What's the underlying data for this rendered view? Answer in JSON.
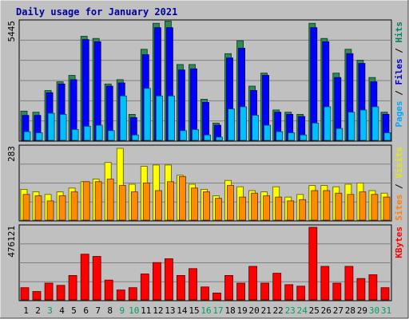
{
  "chart_data": {
    "type": "bar",
    "title": "Daily usage for January 2021",
    "categories": [
      "1",
      "2",
      "3",
      "4",
      "5",
      "6",
      "7",
      "8",
      "9",
      "10",
      "11",
      "12",
      "13",
      "14",
      "15",
      "16",
      "17",
      "18",
      "19",
      "20",
      "21",
      "22",
      "23",
      "24",
      "25",
      "26",
      "27",
      "28",
      "29",
      "30",
      "31"
    ],
    "weekend_days": [
      "3",
      "9",
      "10",
      "16",
      "17",
      "23",
      "24",
      "30",
      "31"
    ],
    "panels": [
      {
        "id": "hits-files-pages",
        "ymax_label": "5445",
        "ymax": 5445,
        "right_labels": [
          {
            "text": "Pages",
            "color": "#00a8ff"
          },
          {
            "text": " / ",
            "color": "#000000"
          },
          {
            "text": "Files",
            "color": "#0000cc"
          },
          {
            "text": " / ",
            "color": "#000000"
          },
          {
            "text": "Hits",
            "color": "#008060"
          }
        ],
        "series": [
          {
            "name": "Hits",
            "color": "#2e8b57",
            "values": [
              1350,
              1300,
              2300,
              2700,
              3000,
              4800,
              4700,
              2600,
              2800,
              1200,
              4200,
              5400,
              5500,
              3500,
              3500,
              1900,
              800,
              4000,
              4600,
              2500,
              3100,
              1400,
              1300,
              1200,
              5400,
              4700,
              3100,
              4200,
              3700,
              2900,
              1300
            ]
          },
          {
            "name": "Files",
            "color": "#0000ff",
            "values": [
              1150,
              1150,
              2200,
              2600,
              2800,
              4650,
              4550,
              2500,
              2650,
              1050,
              3950,
              5200,
              5200,
              3250,
              3300,
              1750,
              700,
              3800,
              4250,
              2300,
              3000,
              1300,
              1200,
              1100,
              5200,
              4550,
              2900,
              4000,
              3550,
              2700,
              1200
            ]
          },
          {
            "name": "Pages",
            "color": "#00bfff",
            "values": [
              400,
              350,
              1250,
              1200,
              500,
              650,
              700,
              450,
              2050,
              250,
              2400,
              2050,
              2050,
              450,
              500,
              250,
              150,
              1450,
              1550,
              1150,
              700,
              400,
              350,
              250,
              800,
              1550,
              550,
              1300,
              1400,
              1550,
              350
            ]
          }
        ]
      },
      {
        "id": "visits-sites",
        "ymax_label": "283",
        "ymax": 283,
        "right_labels": [
          {
            "text": "Sites",
            "color": "#ff8000"
          },
          {
            "text": " / ",
            "color": "#000000"
          },
          {
            "text": "Visits",
            "color": "#e8e800"
          }
        ],
        "series": [
          {
            "name": "Visits",
            "color": "#ffff00",
            "values": [
              120,
              110,
              100,
              110,
              125,
              150,
              160,
              225,
              280,
              140,
              210,
              215,
              215,
              175,
              140,
              120,
              95,
              155,
              130,
              115,
              110,
              130,
              90,
              100,
              135,
              135,
              130,
              140,
              145,
              115,
              105
            ]
          },
          {
            "name": "Sites",
            "color": "#ff8c00",
            "values": [
              100,
              95,
              75,
              95,
              110,
              150,
              150,
              160,
              135,
              110,
              145,
              115,
              150,
              170,
              125,
              110,
              85,
              135,
              90,
              105,
              95,
              90,
              75,
              80,
              115,
              115,
              105,
              100,
              110,
              100,
              90
            ]
          }
        ]
      },
      {
        "id": "kbytes",
        "ymax_label": "476121",
        "ymax": 476121,
        "right_labels": [
          {
            "text": "KBytes",
            "color": "#ff0000"
          }
        ],
        "series": [
          {
            "name": "KBytes",
            "color": "#ff0000",
            "values": [
              80000,
              55000,
              110000,
              95000,
              160000,
              300000,
              285000,
              130000,
              65000,
              80000,
              170000,
              245000,
              270000,
              160000,
              205000,
              85000,
              45000,
              160000,
              110000,
              220000,
              110000,
              175000,
              100000,
              90000,
              476000,
              220000,
              110000,
              220000,
              140000,
              165000,
              80000
            ]
          }
        ]
      }
    ]
  }
}
